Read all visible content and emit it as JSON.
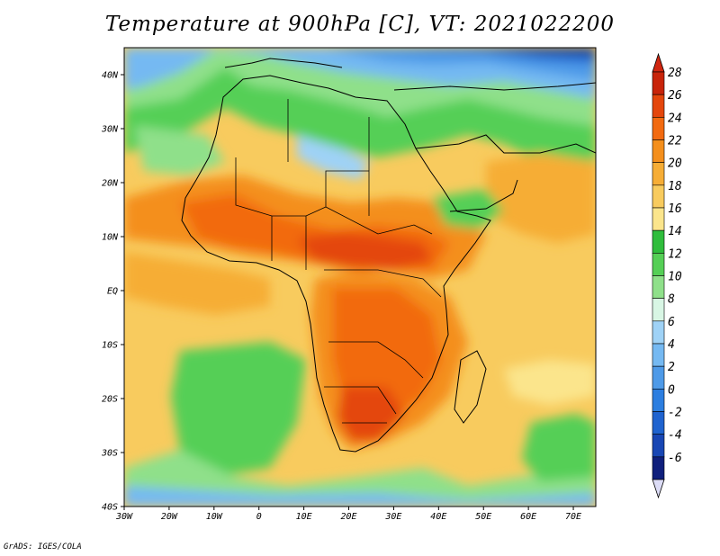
{
  "title": "Temperature at 900hPa [C], VT: 2021022200",
  "credit": "GrADS: IGES/COLA",
  "map": {
    "lon_labels": [
      "30W",
      "20W",
      "10W",
      "0",
      "10E",
      "20E",
      "30E",
      "40E",
      "50E",
      "60E",
      "70E"
    ],
    "lat_labels": [
      "40N",
      "30N",
      "20N",
      "10N",
      "EQ",
      "10S",
      "20S",
      "30S",
      "40S"
    ],
    "lon_range": [
      -30,
      75
    ],
    "lat_range": [
      -40,
      45
    ]
  },
  "colorbar": {
    "labels": [
      "28",
      "26",
      "24",
      "22",
      "20",
      "18",
      "16",
      "14",
      "12",
      "10",
      "8",
      "6",
      "4",
      "2",
      "0",
      "-2",
      "-4",
      "-6"
    ],
    "colors": [
      "#c8240a",
      "#e4460c",
      "#f26a10",
      "#f48f1c",
      "#f6ad36",
      "#f8cb5e",
      "#fbe58c",
      "#2fbd3c",
      "#55cf56",
      "#8fe08a",
      "#d8f6e4",
      "#9fd2f6",
      "#75b9f2",
      "#4e9ae8",
      "#2c7ee0",
      "#1f63cf",
      "#1846b4",
      "#0f1f7c"
    ],
    "over_color": "#d02610",
    "under_color": "#dcdcf6"
  }
}
